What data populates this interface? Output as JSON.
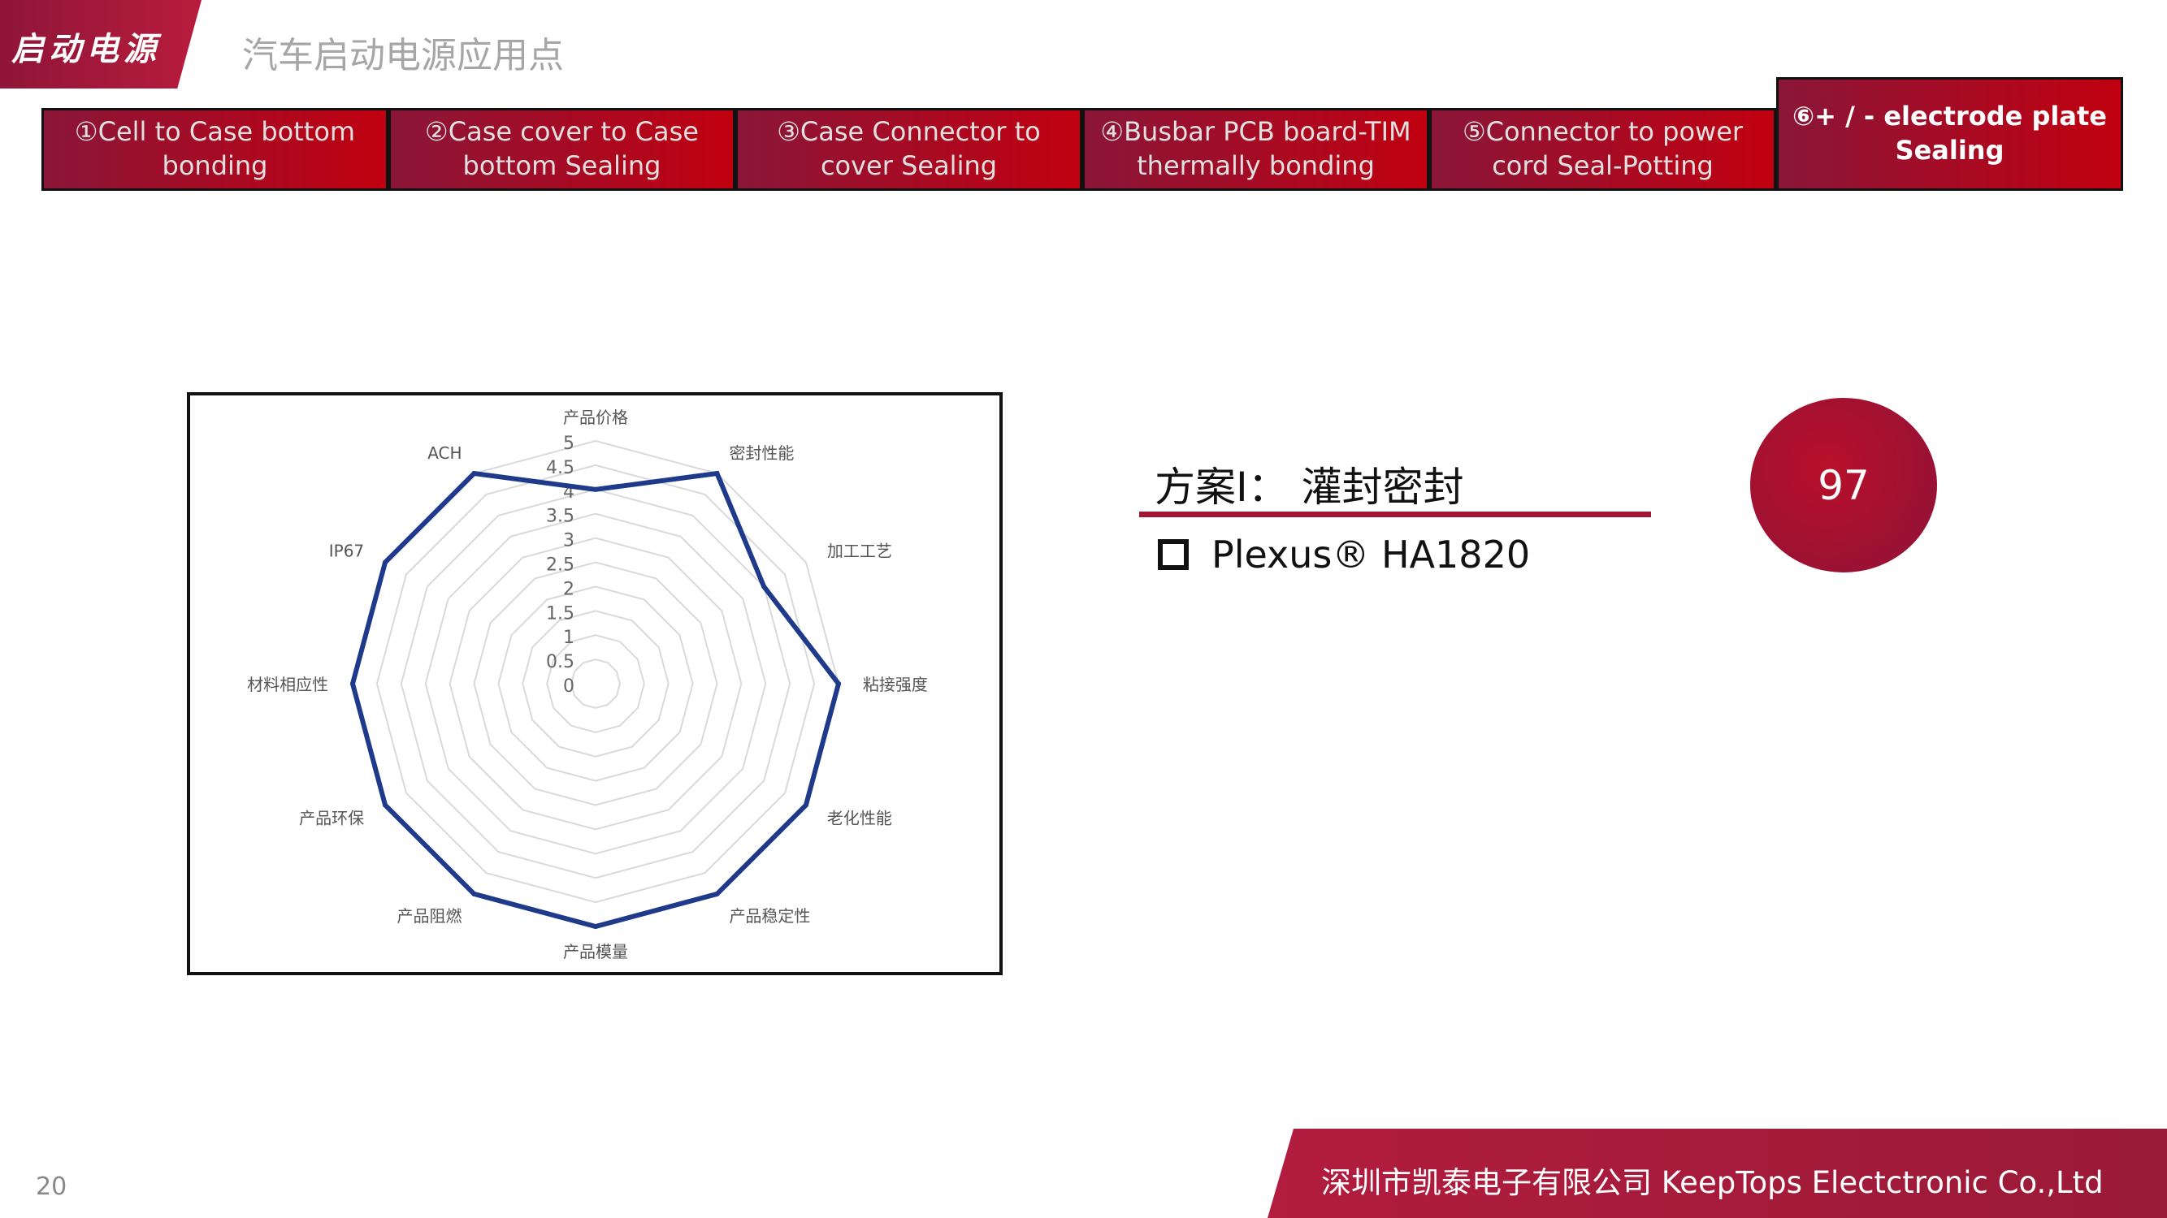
{
  "header": {
    "section_tag": "启动电源",
    "title": "汽车启动电源应用点"
  },
  "tabs": [
    {
      "label": "①Cell to Case bottom bonding"
    },
    {
      "label": "②Case cover to Case bottom Sealing"
    },
    {
      "label": "③Case Connector to cover Sealing"
    },
    {
      "label": "④Busbar PCB board-TIM thermally bonding"
    },
    {
      "label": "⑤Connector to  power cord Seal-Potting"
    },
    {
      "label": "⑥+ / - electrode plate Sealing",
      "active": true
    }
  ],
  "plan": {
    "title": "方案Ⅰ：  灌封密封",
    "product": "Plexus® HA1820",
    "score": "97"
  },
  "footer": {
    "company": "深圳市凯泰电子有限公司 KeepTops Electctronic Co.,Ltd",
    "page_number": "20"
  },
  "colors": {
    "accent": "#a31535",
    "series": "#1f3a8a",
    "grid": "#d9d9d9"
  },
  "chart_data": {
    "type": "radar",
    "categories": [
      "产品价格",
      "密封性能",
      "加工工艺",
      "粘接强度",
      "老化性能",
      "产品稳定性",
      "产品模量",
      "产品阻燃",
      "产品环保",
      "材料相应性",
      "IP67",
      "ACH"
    ],
    "values": [
      4,
      5,
      4,
      5,
      5,
      5,
      5,
      5,
      5,
      5,
      5,
      5
    ],
    "rlim": [
      0,
      5
    ],
    "ticks": [
      "0",
      "0.5",
      "1",
      "1.5",
      "2",
      "2.5",
      "3",
      "3.5",
      "4",
      "4.5",
      "5"
    ],
    "grid": true
  }
}
